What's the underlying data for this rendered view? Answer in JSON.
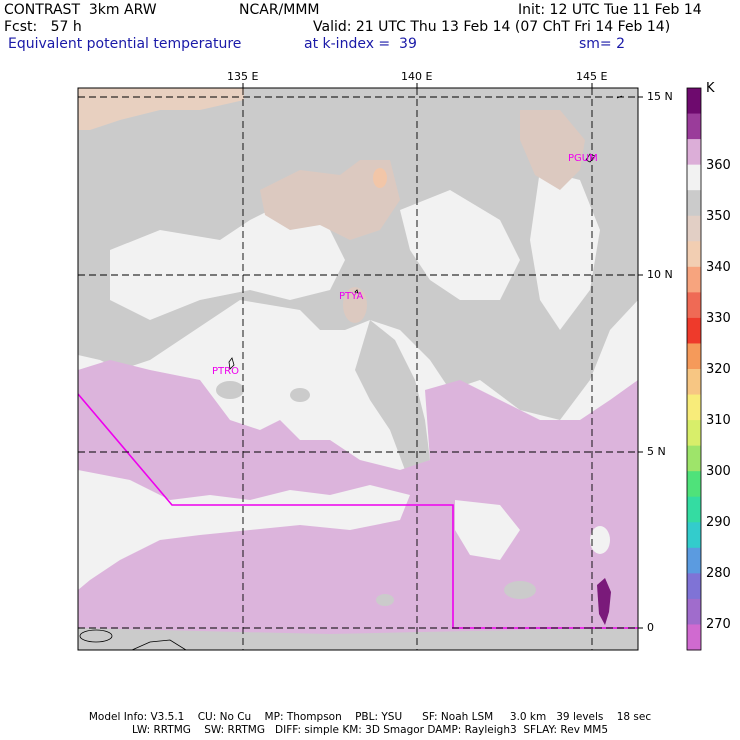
{
  "header": {
    "line1_left": "CONTRAST  3km ARW",
    "line1_mid": "NCAR/MMM",
    "line1_right": "Init: 12 UTC Tue 11 Feb 14",
    "line2_left": "Fcst:   57 h",
    "line2_right": "Valid: 21 UTC Thu 13 Feb 14 (07 ChT Fri 14 Feb 14)",
    "line3_left": "Equivalent potential temperature",
    "line3_mid": "at k-index =  39",
    "line3_right": "sm= 2"
  },
  "map": {
    "lon_labels": [
      "135 E",
      "140 E",
      "145 E"
    ],
    "lat_labels": [
      "15 N",
      "10 N",
      "5 N",
      "0"
    ],
    "stations": [
      "PGUM",
      "PTYA",
      "PTRO"
    ]
  },
  "colorbar": {
    "unit": "K",
    "labels": [
      "360",
      "350",
      "340",
      "330",
      "320",
      "310",
      "300",
      "290",
      "280",
      "270"
    ],
    "colors": [
      "#6e0a6e",
      "#9a3c9a",
      "#dcaed8",
      "#f2f2f2",
      "#cbcbcb",
      "#e2cfc5",
      "#f2ceb2",
      "#f7a47e",
      "#ef6a55",
      "#ee3a2b",
      "#f59a5a",
      "#f7c683",
      "#f8ec7a",
      "#d8ee6a",
      "#9ee46a",
      "#4fe27a",
      "#34dca2",
      "#33cccc",
      "#5b9be0",
      "#7f73d6",
      "#a06ccc",
      "#d06ad0"
    ]
  },
  "footer": {
    "line1": "Model Info: V3.5.1    CU: No Cu    MP: Thompson    PBL: YSU      SF: Noah LSM     3.0 km   39 levels    18 sec",
    "line2": "LW: RRTMG    SW: RRTMG   DIFF: simple KM: 3D Smagor DAMP: Rayleigh3  SFLAY: Rev MM5"
  }
}
